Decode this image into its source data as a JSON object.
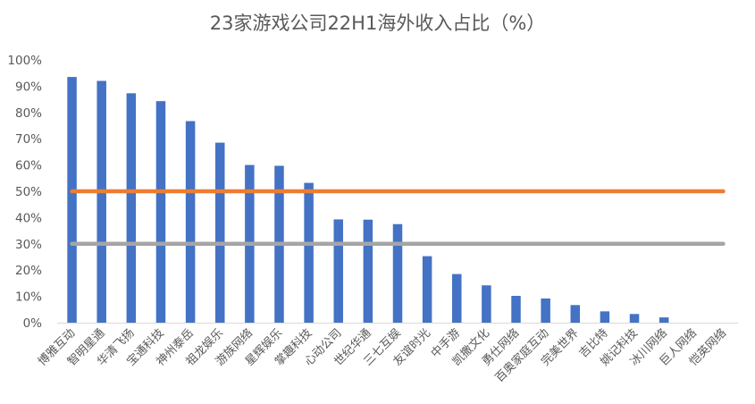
{
  "chart_data": {
    "type": "bar",
    "title": "23家游戏公司22H1海外收入占比（%）",
    "categories": [
      "博雅互动",
      "智明星通",
      "华清飞扬",
      "宝通科技",
      "神州泰岳",
      "祖龙娱乐",
      "游族网络",
      "星辉娱乐",
      "掌趣科技",
      "心动公司",
      "世纪华通",
      "三七互娱",
      "友谊时光",
      "中手游",
      "凯撒文化",
      "勇仕网络",
      "百奥家庭互动",
      "完美世界",
      "吉比特",
      "姚记科技",
      "冰川网络",
      "巨人网络",
      "恺英网络"
    ],
    "values": [
      93.5,
      92,
      87.3,
      84.3,
      76.7,
      68.5,
      60,
      59.7,
      53.2,
      39.3,
      39.2,
      37.5,
      25.3,
      18.5,
      14.2,
      10.2,
      9.2,
      6.7,
      4.3,
      3.3,
      2,
      0,
      0
    ],
    "ylim": [
      0,
      100
    ],
    "yticks": [
      "0%",
      "10%",
      "20%",
      "30%",
      "40%",
      "50%",
      "60%",
      "70%",
      "80%",
      "90%",
      "100%"
    ],
    "reference_lines": [
      {
        "value": 50,
        "color": "#ED7D31"
      },
      {
        "value": 30,
        "color": "#A5A5A5"
      }
    ],
    "bar_color": "#4472C4",
    "grid": false,
    "legend": "none"
  }
}
